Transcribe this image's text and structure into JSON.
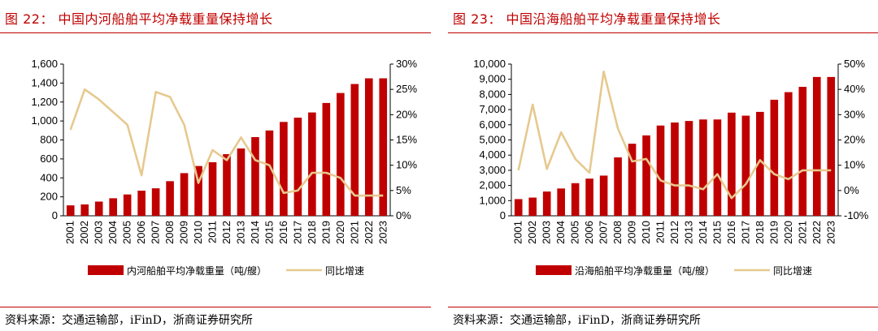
{
  "charts": [
    {
      "figure_title": "图 22：  中国内河船舶平均净载重量保持增长",
      "source": "资料来源：交通运输部，iFinD，浙商证券研究所",
      "chart_data": {
        "type": "bar+line",
        "categories": [
          "2001",
          "2002",
          "2003",
          "2004",
          "2005",
          "2006",
          "2007",
          "2008",
          "2009",
          "2010",
          "2011",
          "2012",
          "2013",
          "2014",
          "2015",
          "2016",
          "2017",
          "2018",
          "2019",
          "2020",
          "2021",
          "2022",
          "2023"
        ],
        "series": [
          {
            "name": "内河船舶平均净载重量（吨/艘）",
            "type": "bar",
            "axis": "left",
            "color": "#c00000",
            "values": [
              110,
              120,
              150,
              185,
              225,
              265,
              290,
              365,
              450,
              525,
              565,
              650,
              710,
              830,
              900,
              990,
              1035,
              1090,
              1190,
              1295,
              1390,
              1450,
              1450
            ]
          },
          {
            "name": "同比增速",
            "type": "line",
            "axis": "right",
            "color": "#e6c98f",
            "values": [
              17,
              25,
              23,
              20.5,
              18,
              8,
              24.5,
              23.5,
              18,
              6.5,
              13,
              11,
              15.5,
              11,
              10,
              4.5,
              5,
              8.5,
              8.5,
              7.5,
              4,
              4,
              4
            ]
          }
        ],
        "ylim": [
          0,
          1600
        ],
        "yticks": [
          "0",
          "200",
          "400",
          "600",
          "800",
          "1,000",
          "1,200",
          "1,400",
          "1,600"
        ],
        "y2lim": [
          0,
          30
        ],
        "y2ticks": [
          "0%",
          "5%",
          "10%",
          "15%",
          "20%",
          "25%",
          "30%"
        ],
        "legend_position": "bottom"
      }
    },
    {
      "figure_title": "图 23：  中国沿海船舶平均净载重量保持增长",
      "source": "资料来源：交通运输部，iFinD，浙商证券研究所",
      "chart_data": {
        "type": "bar+line",
        "categories": [
          "2001",
          "2002",
          "2003",
          "2004",
          "2005",
          "2006",
          "2007",
          "2008",
          "2009",
          "2010",
          "2011",
          "2012",
          "2013",
          "2014",
          "2015",
          "2016",
          "2017",
          "2018",
          "2019",
          "2020",
          "2021",
          "2022",
          "2023"
        ],
        "series": [
          {
            "name": "沿海船舶平均净载重量（吨/艘）",
            "type": "bar",
            "axis": "left",
            "color": "#c00000",
            "values": [
              1100,
              1200,
              1600,
              1800,
              2150,
              2450,
              2650,
              3850,
              4750,
              5300,
              5950,
              6150,
              6250,
              6350,
              6350,
              6800,
              6600,
              6850,
              7650,
              8150,
              8500,
              9150,
              9150
            ]
          },
          {
            "name": "同比增速",
            "type": "line",
            "axis": "right",
            "color": "#e6c98f",
            "values": [
              8,
              34,
              8.5,
              23,
              12.5,
              7,
              47,
              24.5,
              11.5,
              12.5,
              4,
              2,
              2,
              0.5,
              6.5,
              -3,
              2.5,
              12,
              6.5,
              4.5,
              8,
              8,
              8
            ]
          }
        ],
        "ylim": [
          0,
          10000
        ],
        "yticks": [
          "0",
          "1,000",
          "2,000",
          "3,000",
          "4,000",
          "5,000",
          "6,000",
          "7,000",
          "8,000",
          "9,000",
          "10,000"
        ],
        "y2lim": [
          -10,
          50
        ],
        "y2ticks": [
          "-10%",
          "0%",
          "10%",
          "20%",
          "30%",
          "40%",
          "50%"
        ],
        "legend_position": "bottom"
      }
    }
  ]
}
